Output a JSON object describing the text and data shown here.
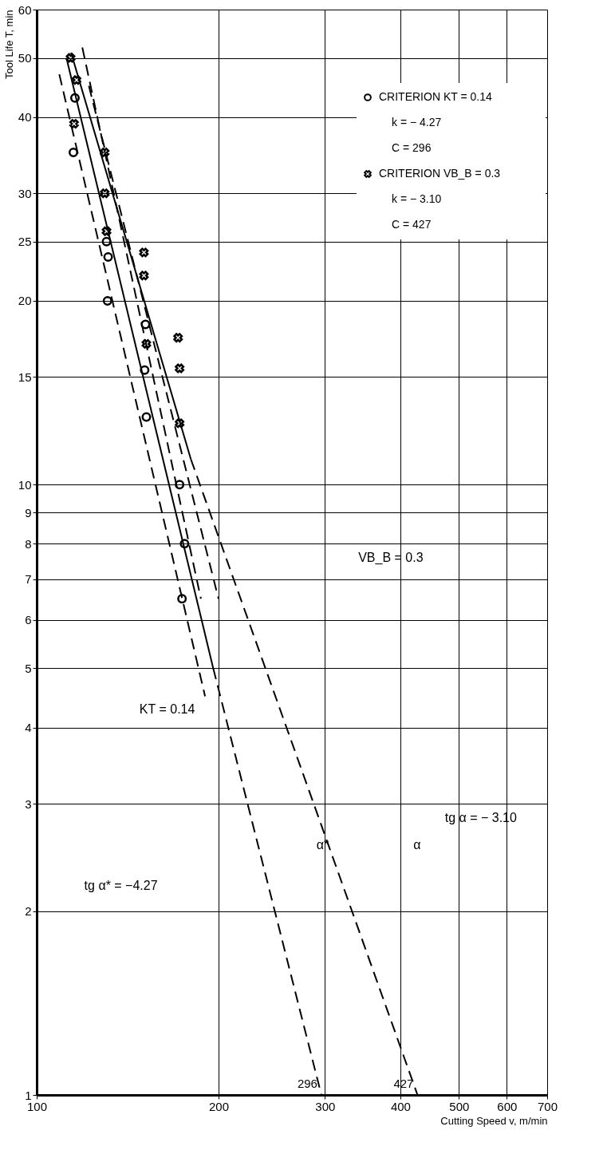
{
  "chart_data": {
    "type": "scatter",
    "xlabel": "Cutting Speed v, m/min",
    "ylabel": "Tool Life T, min",
    "log": "xy",
    "grid": true,
    "legend": "top right",
    "xlim": [
      100,
      700
    ],
    "ylim": [
      1,
      60
    ],
    "xticks": [
      100,
      200,
      300,
      400,
      500,
      600,
      700
    ],
    "yticks": [
      1,
      2,
      3,
      4,
      5,
      6,
      7,
      8,
      9,
      10,
      15,
      20,
      25,
      30,
      40,
      50,
      60
    ],
    "series": [
      {
        "name": "CRITERION KT = 0.14",
        "marker": "circle",
        "color": "#000000",
        "x": [
          115.7,
          115,
          130.5,
          131.3,
          131,
          151.4,
          150.9,
          151.9,
          172.4,
          175.7,
          174
        ],
        "values": [
          43,
          35,
          25,
          23.6,
          20,
          18.3,
          15.4,
          12.9,
          10,
          8,
          6.5
        ]
      },
      {
        "name": "CRITERION VB_B = 0.3",
        "marker": "cross",
        "color": "#000000",
        "x": [
          113.8,
          116.4,
          115.3,
          129.6,
          129.6,
          130.5,
          150.5,
          150.5,
          151.9,
          171.4,
          172.4,
          172.4
        ],
        "values": [
          50,
          46,
          39,
          35,
          30,
          26,
          24,
          22,
          17,
          17.4,
          15.5,
          12.6
        ]
      },
      {
        "type": "line",
        "line_style": "solid",
        "color": "#000000",
        "x": [
          112,
          196
        ],
        "values": [
          50,
          5
        ]
      },
      {
        "type": "line",
        "line_style": "dashed",
        "color": "#000000",
        "x": [
          196,
          296
        ],
        "values": [
          5,
          1
        ]
      },
      {
        "type": "line",
        "line_style": "solid",
        "color": "#000000",
        "x": [
          114,
          180
        ],
        "values": [
          51,
          11
        ]
      },
      {
        "type": "line",
        "line_style": "dashed",
        "color": "#000000",
        "x": [
          180,
          427
        ],
        "values": [
          11,
          1
        ]
      },
      {
        "type": "line",
        "line_style": "dashed",
        "color": "#000000",
        "x": [
          109,
          190
        ],
        "values": [
          47,
          4.5
        ]
      },
      {
        "type": "line",
        "line_style": "dashed",
        "color": "#000000",
        "x": [
          122,
          200
        ],
        "values": [
          45,
          6.5
        ]
      },
      {
        "type": "line",
        "line_style": "dashed",
        "color": "#000000",
        "x": [
          119,
          187
        ],
        "values": [
          52,
          6.5
        ]
      }
    ],
    "annotations": [
      "k = − 4.27",
      "C = 296",
      "k = − 3.10",
      "C = 427",
      {
        "text": "296",
        "x": 296,
        "y": 1
      },
      {
        "text": "427",
        "x": 427,
        "y": 1
      },
      "KT = 0.14",
      "VB_B = 0.3",
      "α*",
      "α",
      "tg α = − 3.10",
      "tg α* = −4.27"
    ]
  }
}
